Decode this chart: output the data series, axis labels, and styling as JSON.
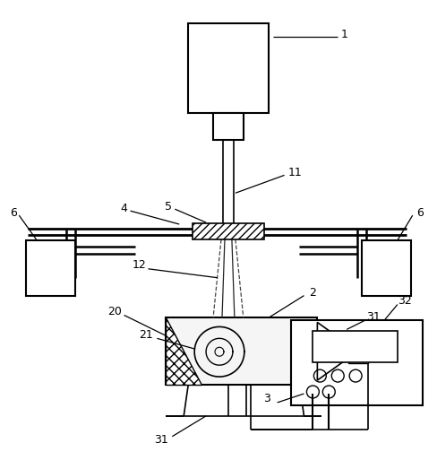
{
  "bg_color": "#ffffff",
  "line_color": "#000000",
  "fig_width": 4.88,
  "fig_height": 5.23,
  "dpi": 100
}
